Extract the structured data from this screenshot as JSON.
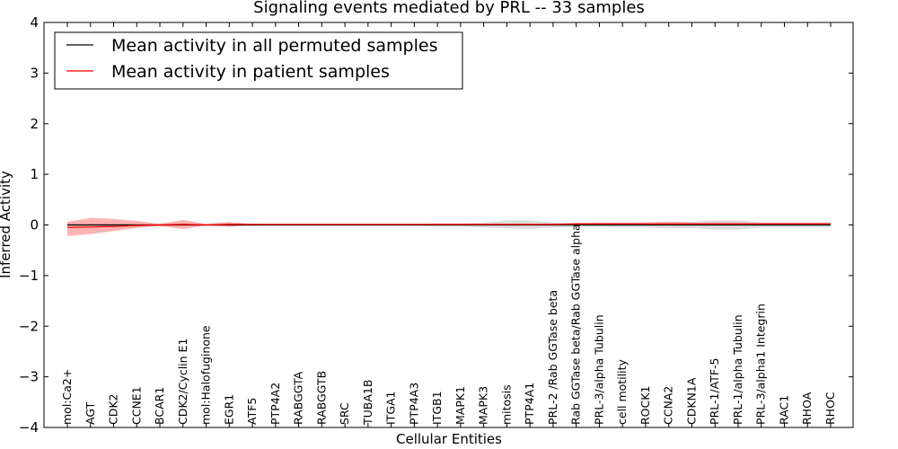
{
  "chart_data": {
    "type": "line",
    "title": "Signaling events mediated by PRL -- 33 samples",
    "xlabel": "Cellular Entities",
    "ylabel": "Inferred Activity",
    "ylim": [
      -4,
      4
    ],
    "yticks": [
      -4,
      -3,
      -2,
      -1,
      0,
      1,
      2,
      3,
      4
    ],
    "ytick_labels": [
      "−4",
      "−3",
      "−2",
      "−1",
      "0",
      "1",
      "2",
      "3",
      "4"
    ],
    "grid": false,
    "legend_position": "top-left",
    "categories": [
      "mol:Ca2+",
      "AGT",
      "CDK2",
      "CCNE1",
      "BCAR1",
      "CDK2/Cyclin E1",
      "mol:Halofuginone",
      "EGR1",
      "ATF5",
      "PTP4A2",
      "RABGGTA",
      "RABGGTB",
      "SRC",
      "TUBA1B",
      "ITGA1",
      "PTP4A3",
      "ITGB1",
      "MAPK1",
      "MAPK3",
      "mitosis",
      "PTP4A1",
      "PRL-2 /Rab GGTase beta",
      "Rab GGTase beta/Rab GGTase alpha",
      "PRL-3/alpha Tubulin",
      "cell motility",
      "ROCK1",
      "CCNA2",
      "CDKN1A",
      "PRL-1/ATF-5",
      "PRL-1/alpha Tubulin",
      "PRL-3/alpha1 Integrin",
      "RAC1",
      "RHOA",
      "RHOC"
    ],
    "series": [
      {
        "name": "Mean activity in all permuted samples",
        "color": "#000000",
        "values": [
          0.0,
          0.0,
          0.0,
          0.0,
          0.0,
          0.0,
          0.0,
          0.0,
          0.0,
          0.0,
          0.0,
          0.0,
          0.0,
          0.0,
          0.0,
          0.0,
          0.0,
          0.0,
          0.0,
          0.0,
          0.0,
          0.0,
          0.0,
          0.0,
          0.0,
          0.0,
          0.0,
          0.0,
          0.0,
          0.0,
          0.0,
          0.0,
          0.0,
          0.0
        ],
        "band_lower": [
          -0.06,
          -0.05,
          -0.05,
          -0.04,
          -0.03,
          -0.03,
          -0.02,
          -0.02,
          -0.02,
          -0.02,
          -0.02,
          -0.02,
          -0.02,
          -0.02,
          -0.02,
          -0.02,
          -0.03,
          -0.03,
          -0.05,
          -0.07,
          -0.08,
          -0.05,
          -0.04,
          -0.04,
          -0.05,
          -0.05,
          -0.07,
          -0.06,
          -0.09,
          -0.09,
          -0.05,
          -0.05,
          -0.05,
          -0.05
        ],
        "band_upper": [
          0.06,
          0.05,
          0.05,
          0.04,
          0.03,
          0.03,
          0.02,
          0.02,
          0.02,
          0.02,
          0.02,
          0.02,
          0.02,
          0.02,
          0.02,
          0.02,
          0.03,
          0.03,
          0.05,
          0.09,
          0.09,
          0.05,
          0.04,
          0.04,
          0.05,
          0.05,
          0.07,
          0.06,
          0.09,
          0.09,
          0.05,
          0.05,
          0.05,
          0.05
        ]
      },
      {
        "name": "Mean activity in patient samples",
        "color": "#ff0000",
        "band_color": "#ff9999",
        "values": [
          -0.05,
          -0.04,
          -0.03,
          -0.01,
          0.0,
          0.01,
          0.0,
          0.01,
          0.01,
          0.01,
          0.01,
          0.01,
          0.01,
          0.01,
          0.01,
          0.01,
          0.01,
          0.01,
          0.01,
          0.01,
          0.01,
          0.01,
          0.02,
          0.02,
          0.02,
          0.02,
          0.02,
          0.02,
          0.02,
          0.02,
          0.02,
          0.02,
          0.02,
          0.02
        ],
        "band_lower": [
          -0.22,
          -0.18,
          -0.12,
          -0.06,
          -0.02,
          -0.08,
          -0.01,
          -0.04,
          0.0,
          0.0,
          0.0,
          0.0,
          0.0,
          0.0,
          0.0,
          0.0,
          0.0,
          0.0,
          0.0,
          0.0,
          0.0,
          0.0,
          0.0,
          0.0,
          0.0,
          0.0,
          0.0,
          0.0,
          0.0,
          0.0,
          0.0,
          0.0,
          0.0,
          0.0
        ],
        "band_upper": [
          0.06,
          0.14,
          0.12,
          0.08,
          0.02,
          0.1,
          0.02,
          0.06,
          0.02,
          0.02,
          0.02,
          0.02,
          0.02,
          0.02,
          0.02,
          0.02,
          0.02,
          0.02,
          0.02,
          0.02,
          0.02,
          0.02,
          0.04,
          0.05,
          0.05,
          0.05,
          0.06,
          0.05,
          0.05,
          0.05,
          0.05,
          0.05,
          0.05,
          0.05
        ]
      }
    ]
  }
}
